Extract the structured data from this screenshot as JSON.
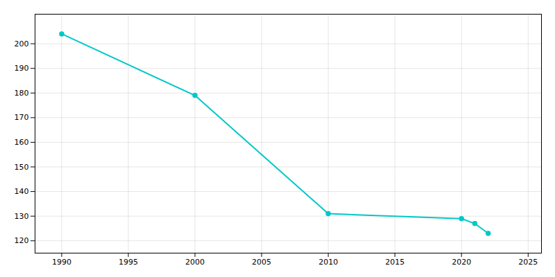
{
  "chart_data": {
    "type": "line",
    "x": [
      1990,
      2000,
      2010,
      2020,
      2021,
      2022
    ],
    "values": [
      204,
      179,
      131,
      129,
      127,
      123
    ],
    "color": "#00C8C8",
    "marker": "circle",
    "xlim": [
      1988,
      2026
    ],
    "ylim": [
      115,
      212
    ],
    "xticks": [
      1990,
      1995,
      2000,
      2005,
      2010,
      2015,
      2020,
      2025
    ],
    "yticks": [
      120,
      130,
      140,
      150,
      160,
      170,
      180,
      190,
      200
    ],
    "grid": true
  }
}
